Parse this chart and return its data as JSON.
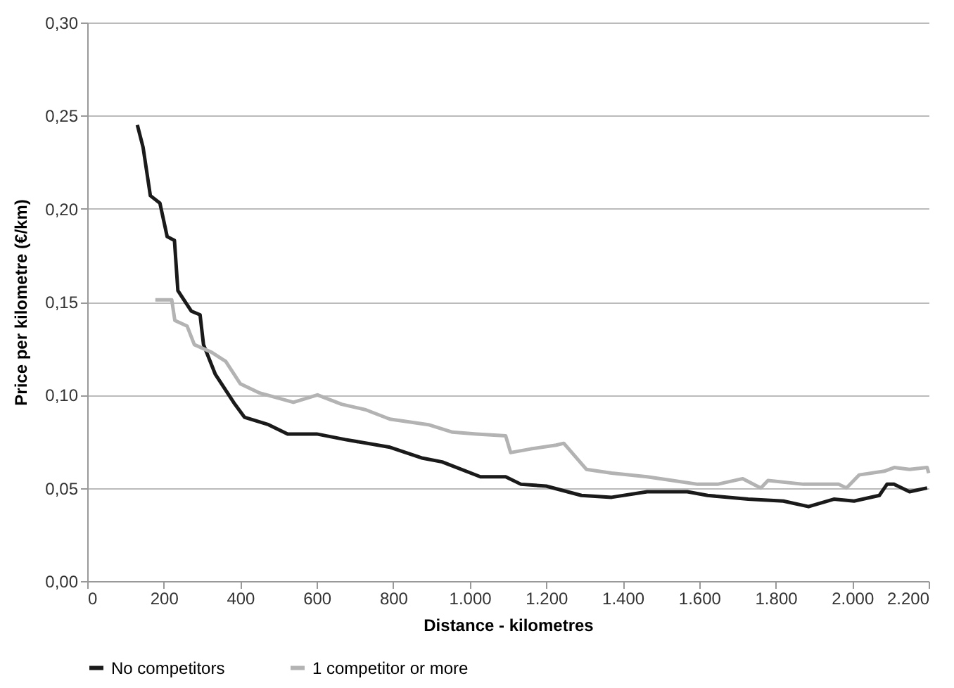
{
  "chart_data": {
    "type": "line",
    "xlabel": "Distance - kilometres",
    "ylabel": "Price per kilometre (€/km)",
    "xlim": [
      0,
      2200
    ],
    "ylim": [
      0,
      0.3
    ],
    "xticks": [
      0,
      200,
      400,
      600,
      800,
      {
        "value": 1000,
        "label": "1.000"
      },
      {
        "value": 1200,
        "label": "1.200"
      },
      {
        "value": 1400,
        "label": "1.400"
      },
      {
        "value": 1600,
        "label": "1.600"
      },
      {
        "value": 1800,
        "label": "1.800"
      },
      {
        "value": 2000,
        "label": "2.000"
      },
      {
        "value": 2200,
        "label": "2.200"
      }
    ],
    "yticks": [
      {
        "value": 0,
        "label": "0,00"
      },
      {
        "value": 0.05,
        "label": "0,05"
      },
      {
        "value": 0.1,
        "label": "0,10"
      },
      {
        "value": 0.15,
        "label": "0,15"
      },
      {
        "value": 0.2,
        "label": "0,20"
      },
      {
        "value": 0.25,
        "label": "0,25"
      },
      {
        "value": 0.3,
        "label": "0,30"
      }
    ],
    "grid": "y",
    "legend": "bottom",
    "line_style": "solid",
    "marker": "none",
    "series": [
      {
        "name": "No competitors",
        "color": "#1a1a1a",
        "x": [
          131,
          146,
          165,
          190,
          209,
          228,
          237,
          272,
          295,
          304,
          335,
          386,
          411,
          474,
          524,
          600,
          675,
          789,
          877,
          928,
          1028,
          1094,
          1134,
          1200,
          1292,
          1371,
          1464,
          1569,
          1622,
          1728,
          1820,
          1886,
          1952,
          2005,
          2071,
          2091,
          2110,
          2150,
          2196
        ],
        "values": [
          0.245,
          0.233,
          0.207,
          0.203,
          0.185,
          0.183,
          0.156,
          0.145,
          0.143,
          0.127,
          0.111,
          0.095,
          0.088,
          0.084,
          0.079,
          0.079,
          0.076,
          0.072,
          0.066,
          0.064,
          0.056,
          0.056,
          0.052,
          0.051,
          0.046,
          0.045,
          0.048,
          0.048,
          0.046,
          0.044,
          0.043,
          0.04,
          0.044,
          0.043,
          0.046,
          0.052,
          0.052,
          0.048,
          0.05
        ]
      },
      {
        "name": "1 competitor or more",
        "color": "#b3b3b3",
        "x": [
          178,
          221,
          229,
          261,
          280,
          324,
          362,
          400,
          451,
          539,
          602,
          665,
          728,
          791,
          892,
          955,
          1018,
          1094,
          1107,
          1160,
          1226,
          1246,
          1305,
          1371,
          1464,
          1530,
          1596,
          1648,
          1714,
          1761,
          1780,
          1873,
          1965,
          1985,
          2018,
          2084,
          2110,
          2150,
          2196,
          2200
        ],
        "values": [
          0.151,
          0.151,
          0.14,
          0.137,
          0.127,
          0.123,
          0.118,
          0.106,
          0.101,
          0.096,
          0.1,
          0.095,
          0.092,
          0.087,
          0.084,
          0.08,
          0.079,
          0.078,
          0.069,
          0.071,
          0.073,
          0.074,
          0.06,
          0.058,
          0.056,
          0.054,
          0.052,
          0.052,
          0.055,
          0.05,
          0.054,
          0.052,
          0.052,
          0.05,
          0.057,
          0.059,
          0.061,
          0.06,
          0.061,
          0.058
        ]
      }
    ]
  }
}
